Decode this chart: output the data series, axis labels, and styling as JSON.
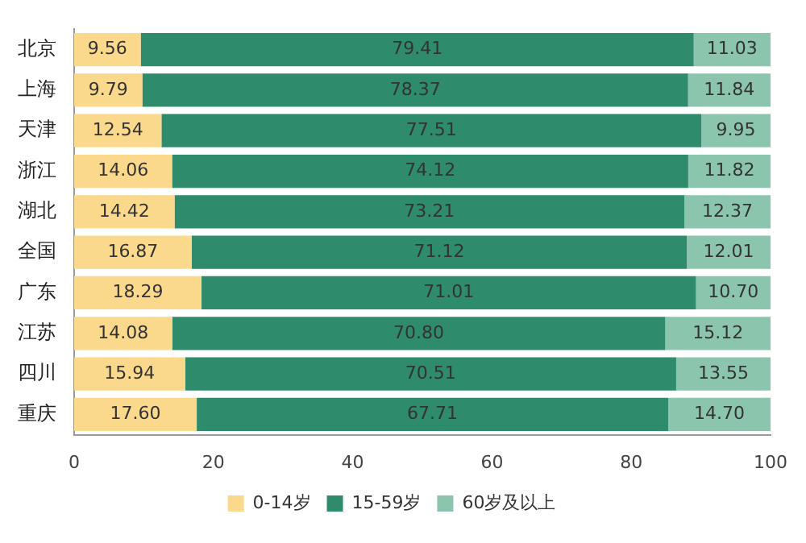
{
  "chart_data": {
    "type": "bar",
    "orientation": "horizontal",
    "stacked": true,
    "categories": [
      "北京",
      "上海",
      "天津",
      "浙江",
      "湖北",
      "全国",
      "广东",
      "江苏",
      "四川",
      "重庆"
    ],
    "series": [
      {
        "name": "0-14岁",
        "color": "#fad98d",
        "values": [
          9.56,
          9.79,
          12.54,
          14.06,
          14.42,
          16.87,
          18.29,
          14.08,
          15.94,
          17.6
        ],
        "value_labels": [
          "9.56",
          "9.79",
          "12.54",
          "14.06",
          "14.42",
          "16.87",
          "18.29",
          "14.08",
          "15.94",
          "17.60"
        ]
      },
      {
        "name": "15-59岁",
        "color": "#2e8b6b",
        "values": [
          79.41,
          78.37,
          77.51,
          74.12,
          73.21,
          71.12,
          71.01,
          70.8,
          70.51,
          67.71
        ],
        "value_labels": [
          "79.41",
          "78.37",
          "77.51",
          "74.12",
          "73.21",
          "71.12",
          "71.01",
          "70.80",
          "70.51",
          "67.71"
        ]
      },
      {
        "name": "60岁及以上",
        "color": "#8cc5ae",
        "values": [
          11.03,
          11.84,
          9.95,
          11.82,
          12.37,
          12.01,
          10.7,
          15.12,
          13.55,
          14.7
        ],
        "value_labels": [
          "11.03",
          "11.84",
          "9.95",
          "11.82",
          "12.37",
          "12.01",
          "10.70",
          "15.12",
          "13.55",
          "14.70"
        ]
      }
    ],
    "xlim": [
      0,
      100
    ],
    "xticks": [
      0,
      20,
      40,
      60,
      80,
      100
    ],
    "legend": "bottom",
    "grid": false
  }
}
